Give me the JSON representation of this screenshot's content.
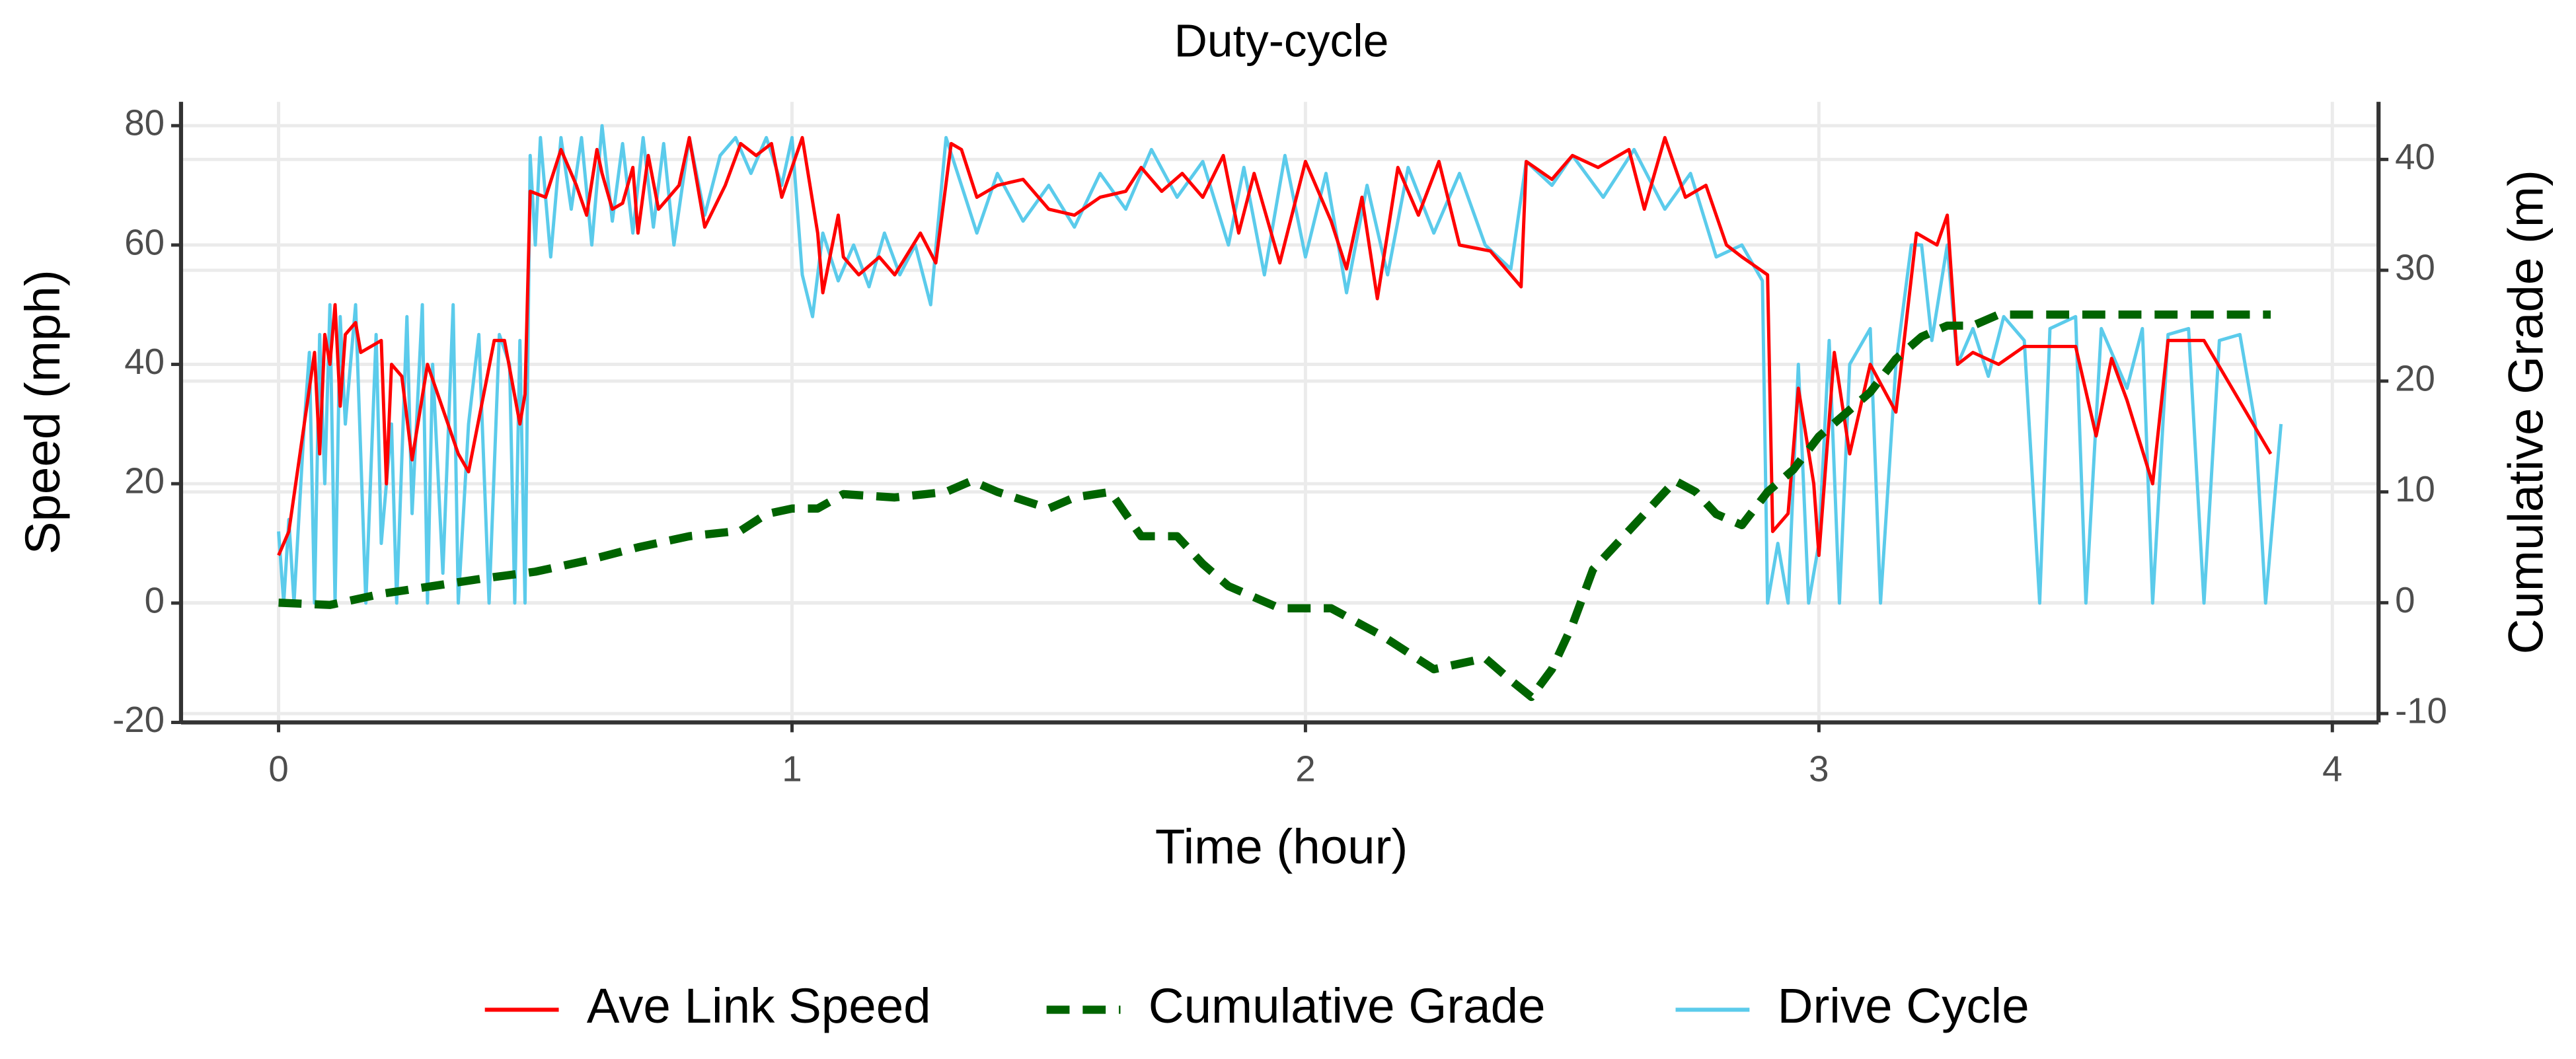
{
  "chart_data": {
    "type": "line",
    "title": "Duty-cycle",
    "x_label": "Time (hour)",
    "y_label": "Speed (mph)",
    "y2_label": "Cumulative Grade (m)",
    "xlim": [
      -0.19,
      4.09
    ],
    "xticks": [
      0,
      1,
      2,
      3,
      4
    ],
    "ylim": [
      -20,
      84
    ],
    "yticks": [
      -20,
      0,
      20,
      40,
      60,
      80
    ],
    "y2lim": [
      -10.8,
      45.2
    ],
    "y2ticks": [
      -10,
      0,
      10,
      20,
      30,
      40
    ],
    "grid": true,
    "legend": "bottom",
    "series": [
      {
        "name": "Ave Link Speed",
        "color": "#ff0000",
        "style": "solid",
        "x": [
          0,
          0.02,
          0.05,
          0.07,
          0.08,
          0.09,
          0.1,
          0.11,
          0.12,
          0.13,
          0.15,
          0.16,
          0.2,
          0.21,
          0.22,
          0.24,
          0.26,
          0.29,
          0.35,
          0.37,
          0.42,
          0.44,
          0.47,
          0.48,
          0.49,
          0.52,
          0.55,
          0.58,
          0.6,
          0.62,
          0.63,
          0.65,
          0.67,
          0.69,
          0.7,
          0.72,
          0.74,
          0.78,
          0.8,
          0.83,
          0.87,
          0.9,
          0.93,
          0.96,
          0.98,
          1.02,
          1.05,
          1.06,
          1.09,
          1.1,
          1.13,
          1.17,
          1.2,
          1.25,
          1.28,
          1.31,
          1.33,
          1.36,
          1.4,
          1.45,
          1.5,
          1.55,
          1.6,
          1.65,
          1.68,
          1.72,
          1.76,
          1.8,
          1.84,
          1.87,
          1.9,
          1.95,
          2.0,
          2.05,
          2.08,
          2.11,
          2.14,
          2.18,
          2.22,
          2.26,
          2.3,
          2.36,
          2.42,
          2.43,
          2.48,
          2.52,
          2.57,
          2.63,
          2.66,
          2.7,
          2.74,
          2.78,
          2.82,
          2.85,
          2.9,
          2.91,
          2.94,
          2.96,
          2.99,
          3.0,
          3.03,
          3.06,
          3.1,
          3.15,
          3.19,
          3.23,
          3.25,
          3.27,
          3.3,
          3.35,
          3.4,
          3.5,
          3.54,
          3.57,
          3.6,
          3.65,
          3.68,
          3.75,
          3.88
        ],
        "values": [
          8,
          12,
          30,
          42,
          25,
          45,
          40,
          50,
          33,
          45,
          47,
          42,
          44,
          20,
          40,
          38,
          24,
          40,
          25,
          22,
          44,
          44,
          30,
          35,
          69,
          68,
          76,
          70,
          65,
          76,
          72,
          66,
          67,
          73,
          62,
          75,
          66,
          70,
          78,
          63,
          70,
          77,
          75,
          77,
          68,
          78,
          62,
          52,
          65,
          58,
          55,
          58,
          55,
          62,
          57,
          77,
          76,
          68,
          70,
          71,
          66,
          65,
          68,
          69,
          73,
          69,
          72,
          68,
          75,
          62,
          72,
          57,
          74,
          64,
          56,
          68,
          51,
          73,
          65,
          74,
          60,
          59,
          53,
          74,
          71,
          75,
          73,
          76,
          66,
          78,
          68,
          70,
          60,
          58,
          55,
          12,
          15,
          36,
          20,
          8,
          42,
          25,
          40,
          32,
          62,
          60,
          65,
          40,
          42,
          40,
          43,
          43,
          28,
          41,
          34,
          20,
          44,
          44,
          25
        ]
      },
      {
        "name": "Cumulative Grade",
        "color": "#006400",
        "style": "dashed",
        "axis": "y2",
        "x": [
          0,
          0.1,
          0.2,
          0.3,
          0.4,
          0.5,
          0.6,
          0.7,
          0.8,
          0.9,
          0.95,
          1.0,
          1.05,
          1.1,
          1.2,
          1.3,
          1.35,
          1.4,
          1.5,
          1.55,
          1.62,
          1.68,
          1.75,
          1.8,
          1.85,
          1.9,
          1.95,
          2.05,
          2.15,
          2.25,
          2.3,
          2.35,
          2.4,
          2.44,
          2.48,
          2.52,
          2.56,
          2.62,
          2.68,
          2.72,
          2.76,
          2.8,
          2.85,
          2.9,
          2.95,
          3.0,
          3.05,
          3.1,
          3.15,
          3.2,
          3.25,
          3.3,
          3.35,
          3.45,
          3.6,
          3.75,
          3.88
        ],
        "values": [
          0,
          -0.2,
          0.8,
          1.5,
          2.2,
          2.8,
          3.8,
          5,
          6,
          6.5,
          8,
          8.5,
          8.5,
          9.8,
          9.5,
          10,
          11,
          10,
          8.5,
          9.5,
          10,
          6,
          6,
          3.5,
          1.5,
          0.5,
          -0.5,
          -0.5,
          -3,
          -6,
          -5.5,
          -5,
          -7,
          -8.5,
          -6,
          -2,
          3,
          6,
          9,
          11,
          10,
          8,
          7,
          10,
          12,
          15,
          17,
          19,
          22,
          24,
          25,
          25,
          26,
          26,
          26,
          26,
          26
        ]
      },
      {
        "name": "Drive Cycle",
        "color": "#5bcbeb",
        "style": "solid",
        "x": [
          0,
          0.01,
          0.02,
          0.03,
          0.05,
          0.06,
          0.07,
          0.08,
          0.09,
          0.1,
          0.11,
          0.12,
          0.13,
          0.15,
          0.17,
          0.19,
          0.2,
          0.22,
          0.23,
          0.25,
          0.26,
          0.28,
          0.29,
          0.3,
          0.32,
          0.34,
          0.35,
          0.37,
          0.39,
          0.41,
          0.43,
          0.45,
          0.46,
          0.47,
          0.48,
          0.49,
          0.5,
          0.51,
          0.53,
          0.55,
          0.57,
          0.59,
          0.61,
          0.63,
          0.65,
          0.67,
          0.69,
          0.71,
          0.73,
          0.75,
          0.77,
          0.8,
          0.83,
          0.86,
          0.89,
          0.92,
          0.95,
          0.98,
          1.0,
          1.02,
          1.04,
          1.06,
          1.09,
          1.12,
          1.15,
          1.18,
          1.21,
          1.24,
          1.27,
          1.3,
          1.33,
          1.36,
          1.4,
          1.45,
          1.5,
          1.55,
          1.6,
          1.65,
          1.7,
          1.75,
          1.8,
          1.85,
          1.88,
          1.92,
          1.96,
          2.0,
          2.04,
          2.08,
          2.12,
          2.16,
          2.2,
          2.25,
          2.3,
          2.35,
          2.4,
          2.43,
          2.48,
          2.52,
          2.58,
          2.64,
          2.7,
          2.75,
          2.8,
          2.85,
          2.89,
          2.9,
          2.92,
          2.94,
          2.96,
          2.98,
          3.0,
          3.02,
          3.04,
          3.06,
          3.1,
          3.12,
          3.15,
          3.18,
          3.2,
          3.22,
          3.25,
          3.27,
          3.3,
          3.33,
          3.36,
          3.4,
          3.43,
          3.45,
          3.5,
          3.52,
          3.55,
          3.6,
          3.63,
          3.65,
          3.68,
          3.72,
          3.75,
          3.78,
          3.82,
          3.85,
          3.87,
          3.9
        ],
        "values": [
          12,
          0,
          14,
          0,
          30,
          42,
          0,
          45,
          20,
          50,
          0,
          48,
          30,
          50,
          0,
          45,
          10,
          30,
          0,
          48,
          15,
          50,
          0,
          40,
          5,
          50,
          0,
          30,
          45,
          0,
          45,
          40,
          0,
          44,
          0,
          75,
          60,
          78,
          58,
          78,
          66,
          78,
          60,
          80,
          64,
          77,
          62,
          78,
          63,
          77,
          60,
          78,
          65,
          75,
          78,
          72,
          78,
          70,
          78,
          55,
          48,
          62,
          54,
          60,
          53,
          62,
          55,
          60,
          50,
          78,
          70,
          62,
          72,
          64,
          70,
          63,
          72,
          66,
          76,
          68,
          74,
          60,
          73,
          55,
          75,
          58,
          72,
          52,
          70,
          55,
          73,
          62,
          72,
          60,
          56,
          74,
          70,
          75,
          68,
          76,
          66,
          72,
          58,
          60,
          54,
          0,
          10,
          0,
          40,
          0,
          10,
          44,
          0,
          40,
          46,
          0,
          40,
          60,
          60,
          44,
          60,
          40,
          46,
          38,
          48,
          44,
          0,
          46,
          48,
          0,
          46,
          36,
          46,
          0,
          45,
          46,
          0,
          44,
          45,
          30,
          0,
          30
        ]
      }
    ]
  }
}
